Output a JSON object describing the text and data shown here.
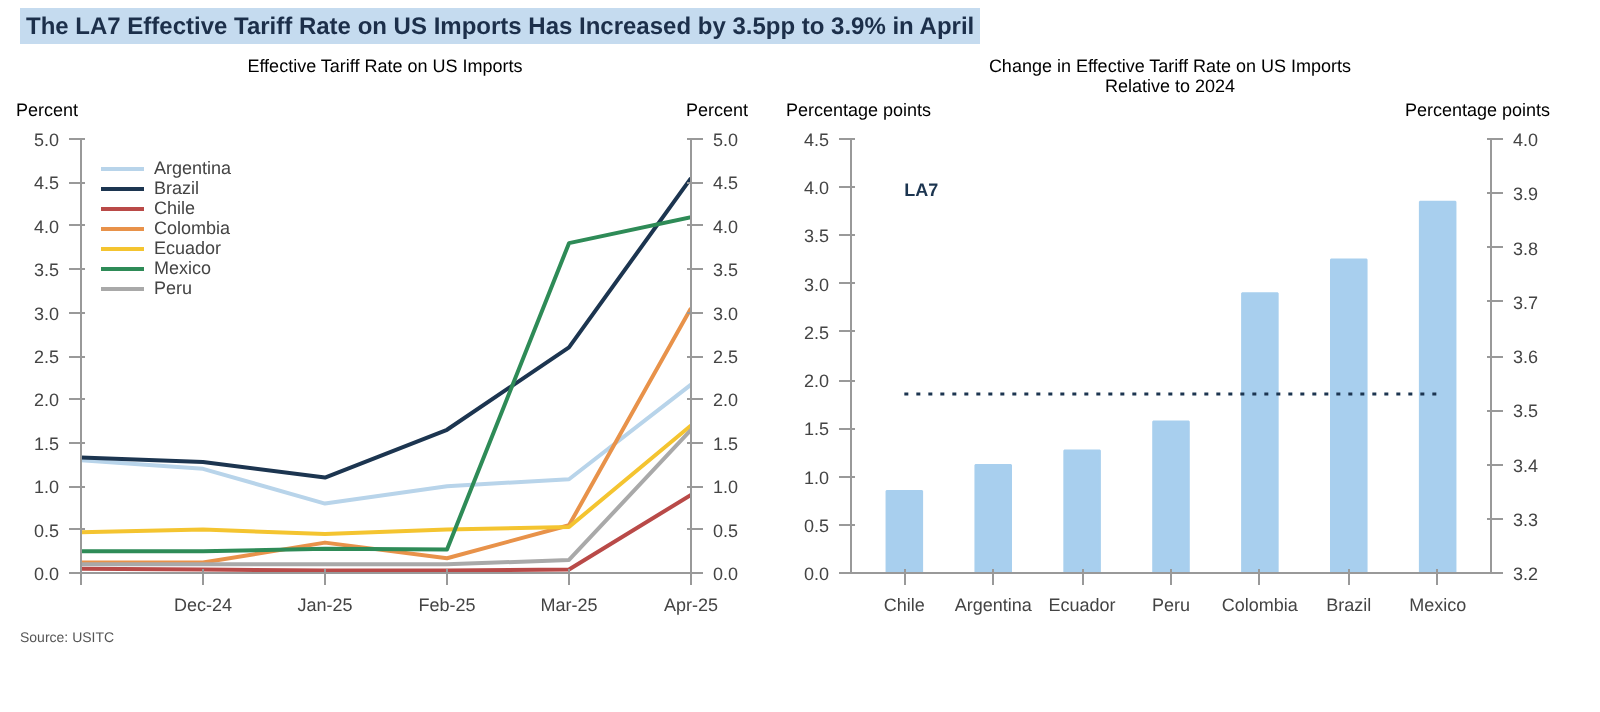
{
  "chart_data": [
    {
      "type": "line",
      "title": "The LA7 Effective Tariff Rate on US Imports Has Increased by 3.5pp to 3.9% in April",
      "subtitle": "Effective Tariff Rate on US Imports",
      "ylabel": "Percent",
      "y2label": "Percent",
      "categories": [
        null,
        "Dec-24",
        "Jan-25",
        "Feb-25",
        "Mar-25",
        "Apr-25"
      ],
      "series": [
        {
          "name": "Argentina",
          "color": "#b8d4ea",
          "values": [
            1.3,
            1.2,
            0.8,
            1.0,
            1.08,
            2.17
          ]
        },
        {
          "name": "Brazil",
          "color": "#1c3550",
          "values": [
            1.33,
            1.28,
            1.1,
            1.65,
            2.6,
            4.55
          ]
        },
        {
          "name": "Chile",
          "color": "#b94a48",
          "values": [
            0.05,
            0.04,
            0.03,
            0.03,
            0.04,
            0.9
          ]
        },
        {
          "name": "Colombia",
          "color": "#e8924a",
          "values": [
            0.12,
            0.12,
            0.35,
            0.17,
            0.55,
            3.05
          ]
        },
        {
          "name": "Ecuador",
          "color": "#f4c430",
          "values": [
            0.47,
            0.5,
            0.45,
            0.5,
            0.53,
            1.7
          ]
        },
        {
          "name": "Mexico",
          "color": "#2e8b57",
          "values": [
            0.25,
            0.25,
            0.28,
            0.27,
            3.8,
            4.1
          ]
        },
        {
          "name": "Peru",
          "color": "#a9a9a9",
          "values": [
            0.1,
            0.1,
            0.1,
            0.1,
            0.15,
            1.65
          ]
        }
      ],
      "ylim": [
        0,
        5
      ],
      "yticks": [
        {
          "value": 0,
          "label": "0.0"
        },
        0.5,
        {
          "value": 1,
          "label": "1.0"
        },
        1.5,
        {
          "value": 2,
          "label": "2.0"
        },
        2.5,
        {
          "value": 3,
          "label": "3.0"
        },
        3.5,
        {
          "value": 4,
          "label": "4.0"
        },
        4.5,
        {
          "value": 5,
          "label": "5.0"
        }
      ],
      "y2lim": [
        0,
        5
      ],
      "y2ticks": [
        {
          "value": 0,
          "label": "0.0"
        },
        0.5,
        {
          "value": 1,
          "label": "1.0"
        },
        1.5,
        {
          "value": 2,
          "label": "2.0"
        },
        2.5,
        {
          "value": 3,
          "label": "3.0"
        },
        3.5,
        {
          "value": 4,
          "label": "4.0"
        },
        4.5,
        {
          "value": 5,
          "label": "5.0"
        }
      ],
      "legend": "top left",
      "annotations": [
        "Source: USITC"
      ]
    },
    {
      "type": "bar",
      "title": "Change in Effective Tariff Rate on US Imports",
      "subtitle": "Relative to 2024",
      "ylabel": "Percentage points",
      "y2label": "Percentage points",
      "categories": [
        "Chile",
        "Argentina",
        "Ecuador",
        "Peru",
        "Colombia",
        "Brazil",
        "Mexico"
      ],
      "values": [
        0.85,
        1.12,
        1.27,
        1.57,
        2.9,
        3.25,
        3.85
      ],
      "color": "#a8cfee",
      "ylim": [
        0,
        4.5
      ],
      "yticks": [
        {
          "value": 0,
          "label": "0.0"
        },
        0.5,
        {
          "value": 1,
          "label": "1.0"
        },
        1.5,
        {
          "value": 2,
          "label": "2.0"
        },
        2.5,
        {
          "value": 3,
          "label": "3.0"
        },
        3.5,
        {
          "value": 4,
          "label": "4.0"
        },
        4.5
      ],
      "y2lim": [
        3.2,
        4.0
      ],
      "y2ticks": [
        3.2,
        3.3,
        3.4,
        3.5,
        3.6,
        3.7,
        3.8,
        3.9,
        {
          "value": 4,
          "label": "4.0"
        }
      ],
      "ref_lines": [
        {
          "axis": "y2",
          "value": 3.53,
          "label": "LA7",
          "color": "#1c3550",
          "line_style": "dotted"
        }
      ]
    }
  ]
}
